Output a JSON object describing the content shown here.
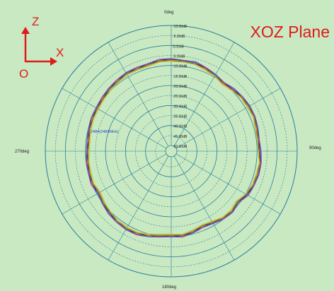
{
  "plane_label": "XOZ Plane",
  "axes_indicator": {
    "up": "Z",
    "right": "X",
    "origin": "O",
    "color": "#e01b1b"
  },
  "chart_data": {
    "type": "polar",
    "title": "XOZ Plane",
    "angular_labels": [
      "0deg",
      "90deg",
      "180deg",
      "270deg"
    ],
    "radial_labels": [
      "-10.00dB",
      "-5.00dB",
      "0.00dB",
      "-5.00dB",
      "-10.00dB",
      "-15.00dB",
      "-20.00dB",
      "-25.00dB",
      "-30.00dB",
      "-35.00dB",
      "-40.00dB",
      "-45.00dB",
      "-50.00dB"
    ],
    "radial_range": [
      -50,
      10
    ],
    "radial_step": 5,
    "angular_spokes": 12,
    "grid": true,
    "marker_label": "2484(2484MHz)",
    "colors": {
      "background": "#c8e9c2",
      "grid": "#2a7d9c",
      "minor_grid": "#2a7d9c"
    },
    "series": [
      {
        "color": "#d62828",
        "values": [
          -7,
          -7.5,
          -7,
          -8,
          -9,
          -10,
          -9,
          -8.5,
          -8,
          -8,
          -8.5,
          -9,
          -8.5,
          -8,
          -8,
          -8.5,
          -9,
          -11,
          -10,
          -10.5,
          -11.5,
          -12,
          -11,
          -10,
          -10.5,
          -10,
          -9,
          -8,
          -8,
          -8.5,
          -9,
          -10,
          -11,
          -10,
          -10.5,
          -10.5,
          -11,
          -11,
          -10.5,
          -10,
          -10,
          -9.5,
          -9,
          -8.5,
          -8,
          -8,
          -8,
          -7,
          -7
        ]
      },
      {
        "color": "#2b3fc7",
        "values": [
          -6.5,
          -7,
          -6.5,
          -7.5,
          -8.5,
          -9.5,
          -8.5,
          -8,
          -7.5,
          -7.5,
          -8,
          -8.5,
          -8,
          -7.5,
          -7.5,
          -8,
          -8.5,
          -10.5,
          -9.5,
          -10,
          -11,
          -11.5,
          -10.5,
          -9.5,
          -10,
          -9.5,
          -8.5,
          -7.5,
          -7.5,
          -8,
          -8.5,
          -9.5,
          -10.5,
          -9.5,
          -10,
          -10,
          -10.5,
          -10.5,
          -10,
          -9.5,
          -9.5,
          -9,
          -8.5,
          -8,
          -7.5,
          -7.5,
          -7.5,
          -6.5,
          -6.5
        ]
      },
      {
        "color": "#2e9e3a",
        "values": [
          -7.5,
          -8,
          -7.5,
          -8.5,
          -9.5,
          -10.5,
          -9.5,
          -9,
          -8.5,
          -8.5,
          -9,
          -9.5,
          -9,
          -8.5,
          -8.5,
          -9,
          -9.5,
          -11.5,
          -10.5,
          -11,
          -12,
          -12.5,
          -11.5,
          -10.5,
          -11,
          -10.5,
          -9.5,
          -8.5,
          -8.5,
          -9,
          -9.5,
          -10.5,
          -11.5,
          -10.5,
          -11,
          -11,
          -11.5,
          -11.5,
          -11,
          -10.5,
          -10.5,
          -10,
          -9.5,
          -9,
          -8.5,
          -8.5,
          -8.5,
          -7.5,
          -7.5
        ]
      },
      {
        "color": "#1a1a1a",
        "values": [
          -7,
          -7.5,
          -7,
          -8,
          -9,
          -10,
          -9,
          -8.5,
          -8,
          -8,
          -8.5,
          -9,
          -8.5,
          -8,
          -8,
          -8.5,
          -9,
          -11,
          -10,
          -10.5,
          -11.5,
          -12,
          -11,
          -10,
          -10.5,
          -10,
          -9,
          -8,
          -8,
          -8.5,
          -9,
          -10,
          -11,
          -10,
          -10.5,
          -10.5,
          -11,
          -11,
          -10.5,
          -10,
          -10,
          -9.5,
          -9,
          -8.5,
          -8,
          -8,
          -8,
          -7,
          -7
        ]
      },
      {
        "color": "#e07b22",
        "values": [
          -7.5,
          -7,
          -7.5,
          -8.5,
          -9,
          -10.5,
          -9.5,
          -8.5,
          -8.5,
          -8,
          -9,
          -9,
          -9,
          -8,
          -8.5,
          -8.5,
          -9.5,
          -11,
          -10.5,
          -10.5,
          -12,
          -12,
          -11.5,
          -10,
          -11,
          -10,
          -9.5,
          -8,
          -8.5,
          -8.5,
          -9.5,
          -10,
          -11.5,
          -10,
          -11,
          -10.5,
          -11.5,
          -11,
          -11,
          -10,
          -10.5,
          -9.5,
          -9.5,
          -8.5,
          -8.5,
          -8,
          -8.5,
          -7,
          -7.5
        ]
      },
      {
        "color": "#9b3fc4",
        "values": [
          -6.5,
          -7.5,
          -7,
          -7.5,
          -9,
          -9.5,
          -9,
          -8,
          -8,
          -7.5,
          -8.5,
          -8.5,
          -8.5,
          -7.5,
          -8,
          -8,
          -9,
          -10.5,
          -10,
          -10,
          -11.5,
          -11.5,
          -11,
          -9.5,
          -10.5,
          -9.5,
          -9,
          -7.5,
          -8,
          -8,
          -9,
          -9.5,
          -11,
          -9.5,
          -10.5,
          -10,
          -11,
          -10.5,
          -10.5,
          -9.5,
          -10,
          -9,
          -9,
          -8,
          -8,
          -7.5,
          -8,
          -6.5,
          -7
        ]
      },
      {
        "color": "#c4c41d",
        "values": [
          -8,
          -8,
          -8,
          -9,
          -9.5,
          -11,
          -10,
          -9,
          -9,
          -8.5,
          -9.5,
          -9.5,
          -9.5,
          -8.5,
          -9,
          -9,
          -10,
          -12,
          -11,
          -11,
          -12.5,
          -13,
          -12,
          -11,
          -11.5,
          -11,
          -10,
          -9,
          -9,
          -9,
          -10,
          -11,
          -12,
          -11,
          -11.5,
          -11.5,
          -12,
          -12,
          -11.5,
          -11,
          -11,
          -10.5,
          -10,
          -9.5,
          -9,
          -9,
          -9,
          -8,
          -8
        ]
      },
      {
        "color": "#7a4a2a",
        "values": [
          -7,
          -7,
          -7.5,
          -8,
          -9,
          -10,
          -9.5,
          -8.5,
          -8,
          -8,
          -8.5,
          -9,
          -9,
          -8,
          -8,
          -8.5,
          -9.5,
          -11,
          -10,
          -10.5,
          -11.5,
          -12.5,
          -11,
          -10.5,
          -10.5,
          -10,
          -9,
          -8.5,
          -8,
          -8.5,
          -9.5,
          -10,
          -11,
          -10.5,
          -10.5,
          -11,
          -11,
          -11.5,
          -10.5,
          -10.5,
          -10,
          -10,
          -9,
          -9,
          -8,
          -8.5,
          -8,
          -7.5,
          -7
        ]
      }
    ]
  }
}
